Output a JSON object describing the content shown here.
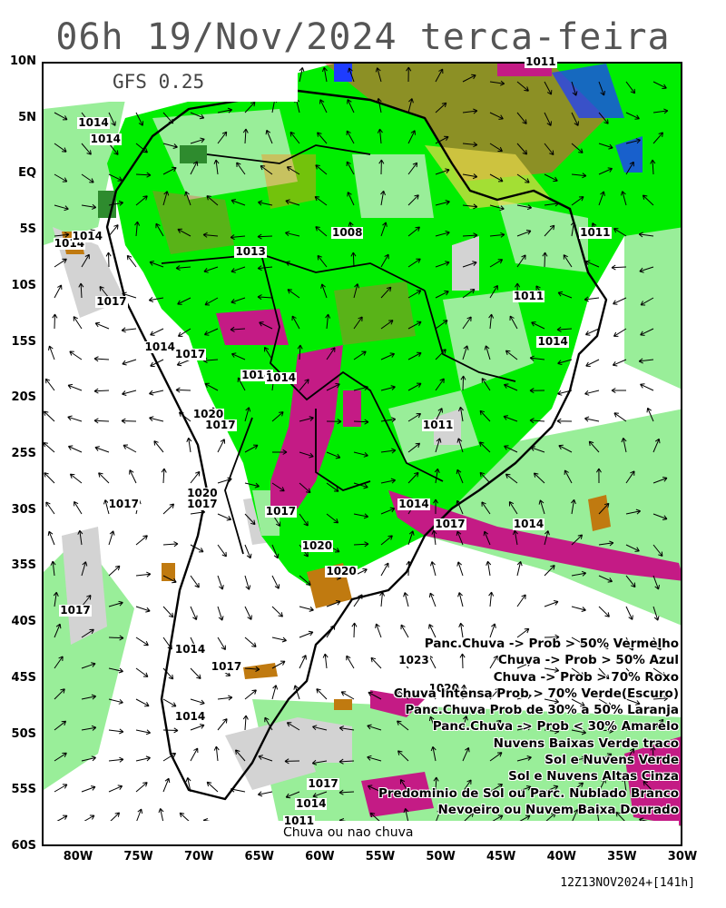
{
  "title": "06h 19/Nov/2024 terca-feira",
  "model": "GFS 0.25",
  "footer": "Chuva ou nao chuva",
  "run": "12Z13NOV2024+[141h]",
  "lat_labels": [
    "10N",
    "5N",
    "EQ",
    "5S",
    "10S",
    "15S",
    "20S",
    "25S",
    "30S",
    "35S",
    "40S",
    "45S",
    "50S",
    "55S",
    "60S"
  ],
  "lon_labels": [
    "80W",
    "75W",
    "70W",
    "65W",
    "60W",
    "55W",
    "50W",
    "45W",
    "40W",
    "35W",
    "30W"
  ],
  "legend": [
    "Panc.Chuva -> Prob > 50% Vermelho",
    "Chuva -> Prob > 50% Azul",
    "Chuva -> Prob > 70% Roxo",
    "Chuva Intensa Prob > 70% Verde(Escuro)",
    "Panc.Chuva Prob de 30% a 50% Laranja",
    "Panc.Chuva -> Prob < 30% Amarelo",
    "Nuvens Baixas Verde traco",
    "Sol e Nuvens Verde",
    "Sol e Nuvens Altas Cinza",
    "Predominio de Sol ou Parc. Nublado Branco",
    "Nevoeiro ou Nuvem Baixa Dourado"
  ],
  "isobars": [
    {
      "label": "1014",
      "lon": -79,
      "lat": 4.5
    },
    {
      "label": "1014",
      "lon": -78,
      "lat": 3
    },
    {
      "label": "1013",
      "lon": -66,
      "lat": -7
    },
    {
      "label": "1008",
      "lon": -58,
      "lat": -5.3
    },
    {
      "label": "1014",
      "lon": -81,
      "lat": -6.3
    },
    {
      "label": "1014",
      "lon": -79.5,
      "lat": -5.6
    },
    {
      "label": "1011",
      "lon": -37.5,
      "lat": -5.3
    },
    {
      "label": "1011",
      "lon": -43,
      "lat": -11
    },
    {
      "label": "1017",
      "lon": -77.5,
      "lat": -11.5
    },
    {
      "label": "1014",
      "lon": -41,
      "lat": -15
    },
    {
      "label": "1014",
      "lon": -73.5,
      "lat": -15.5
    },
    {
      "label": "1017",
      "lon": -71,
      "lat": -16.2
    },
    {
      "label": "1014",
      "lon": -65.5,
      "lat": -18
    },
    {
      "label": "1014",
      "lon": -63.5,
      "lat": -18.3
    },
    {
      "label": "1020",
      "lon": -69.5,
      "lat": -21.5
    },
    {
      "label": "1017",
      "lon": -68.5,
      "lat": -22.5
    },
    {
      "label": "1011",
      "lon": -50.5,
      "lat": -22.5
    },
    {
      "label": "1017",
      "lon": -76.5,
      "lat": -29.5
    },
    {
      "label": "1020",
      "lon": -70,
      "lat": -28.6
    },
    {
      "label": "1017",
      "lon": -70,
      "lat": -29.5
    },
    {
      "label": "1017",
      "lon": -63.5,
      "lat": -30.2
    },
    {
      "label": "1014",
      "lon": -52.5,
      "lat": -29.5
    },
    {
      "label": "1017",
      "lon": -49.5,
      "lat": -31.3
    },
    {
      "label": "1014",
      "lon": -43,
      "lat": -31.3
    },
    {
      "label": "1020",
      "lon": -60.5,
      "lat": -33.3
    },
    {
      "label": "1020",
      "lon": -58.5,
      "lat": -35.5
    },
    {
      "label": "1017",
      "lon": -80.5,
      "lat": -39
    },
    {
      "label": "1014",
      "lon": -71,
      "lat": -42.5
    },
    {
      "label": "1017",
      "lon": -68,
      "lat": -44
    },
    {
      "label": "1023",
      "lon": -52.5,
      "lat": -43.5
    },
    {
      "label": "1020",
      "lon": -50,
      "lat": -46
    },
    {
      "label": "1014",
      "lon": -71,
      "lat": -48.5
    },
    {
      "label": "1017",
      "lon": -60,
      "lat": -54.5
    },
    {
      "label": "1014",
      "lon": -61,
      "lat": -56.3
    },
    {
      "label": "1011",
      "lon": -62,
      "lat": -57.8
    },
    {
      "label": "1011",
      "lon": -42,
      "lat": 9.9
    }
  ],
  "colors": {
    "sol_nuvens_verde": "#00ee00",
    "nuvens_baixas_verde_traco": "#99ee99",
    "sol_nuvens_altas_cinza": "#d3d3d3",
    "predominio_sol_branco": "#ffffff",
    "chuva_prob70_roxo": "#c41b85",
    "panc_chuva_prob50_vermelho": "#ff4444",
    "chuva_prob50_azul": "#1e3cff",
    "chuva_intensa_verde_escuro": "#2e8b2e",
    "panc_chuva_laranja": "#ff8c1a",
    "panc_chuva_amarelo": "#e8d84a",
    "nevoeiro_dourado": "#c07a10"
  }
}
